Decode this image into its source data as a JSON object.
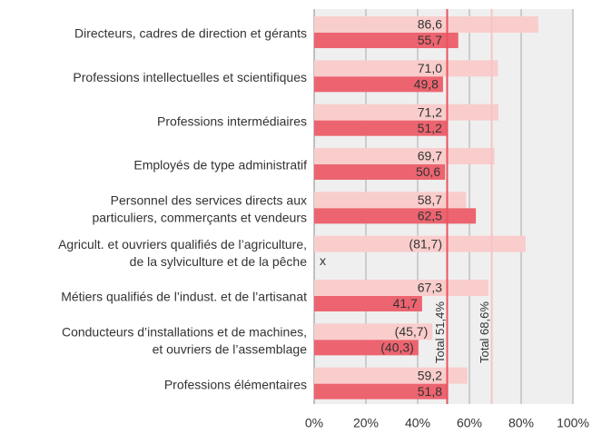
{
  "chart_data": {
    "type": "bar",
    "orientation": "horizontal",
    "categories": [
      [
        "Directeurs, cadres de direction et gérants"
      ],
      [
        "Professions intellectuelles et scientifiques"
      ],
      [
        "Professions intermédiaires"
      ],
      [
        "Employés de type administratif"
      ],
      [
        "Personnel des services directs aux",
        "particuliers, commerçants et vendeurs"
      ],
      [
        "Agricult. et ouvriers qualifiés de l’agriculture,",
        "de la sylviculture et de la pêche"
      ],
      [
        "Métiers qualifiés de l’indust. et de l’artisanat"
      ],
      [
        "Conducteurs d’installations et de machines,",
        "et ouvriers de l’assemblage"
      ],
      [
        "Professions élémentaires"
      ]
    ],
    "series": [
      {
        "color": "#f9cdcc",
        "values": [
          86.6,
          71.0,
          71.2,
          69.7,
          58.7,
          81.7,
          67.3,
          45.7,
          59.2
        ],
        "value_labels": [
          "86,6",
          "71,0",
          "71,2",
          "69,7",
          "58,7",
          "(81,7)",
          "67,3",
          "(45,7)",
          "59,2"
        ]
      },
      {
        "color": "#ec6470",
        "values": [
          55.7,
          49.8,
          51.2,
          50.6,
          62.5,
          null,
          41.7,
          40.3,
          51.8
        ],
        "value_labels": [
          "55,7",
          "49,8",
          "51,2",
          "50,6",
          "62,5",
          "x",
          "41,7",
          "(40,3)",
          "51,8"
        ]
      }
    ],
    "reference_lines": [
      {
        "value": 51.4,
        "label": "Total 51,4%",
        "color": "#e8545f"
      },
      {
        "value": 68.6,
        "label": "Total 68,6%",
        "color": "#f7c3c3"
      }
    ],
    "xlim": [
      0,
      100
    ],
    "xticks": [
      {
        "value": 0,
        "label": "0%"
      },
      {
        "value": 20,
        "label": "20%"
      },
      {
        "value": 40,
        "label": "40%"
      },
      {
        "value": 60,
        "label": "60%"
      },
      {
        "value": 80,
        "label": "80%"
      },
      {
        "value": 100,
        "label": "100%"
      }
    ],
    "grid": true
  }
}
